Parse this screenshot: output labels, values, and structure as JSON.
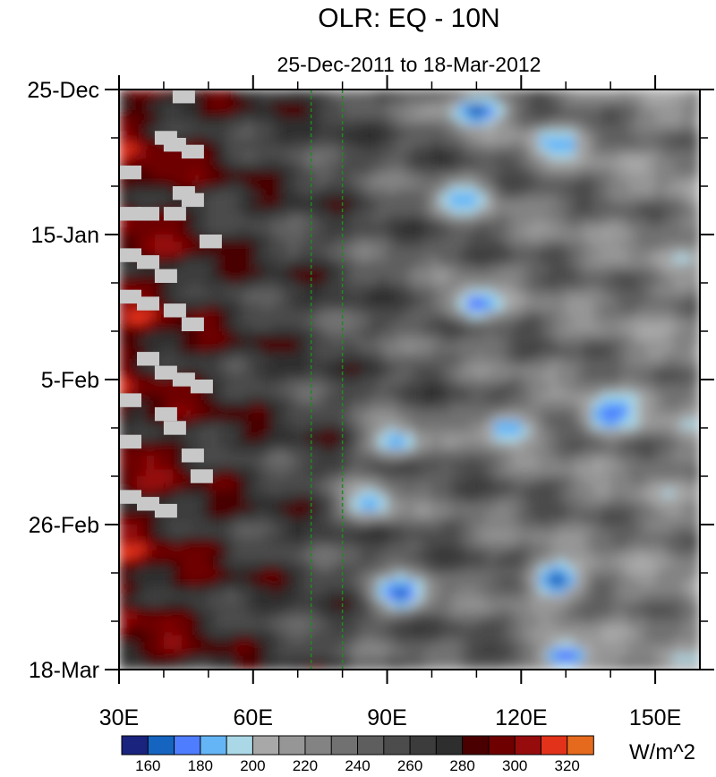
{
  "chart_data": {
    "type": "heatmap",
    "title": "OLR: EQ - 10N",
    "subtitle": "25-Dec-2011 to 18-Mar-2012",
    "xlabel": "",
    "ylabel": "",
    "x_ticks": [
      "30E",
      "60E",
      "90E",
      "120E",
      "150E"
    ],
    "x_tick_values": [
      30,
      60,
      90,
      120,
      150
    ],
    "xlim": [
      30,
      160
    ],
    "y_ticks": [
      "25-Dec",
      "15-Jan",
      "5-Feb",
      "26-Feb",
      "18-Mar"
    ],
    "y_tick_values": [
      "2011-12-25",
      "2012-01-15",
      "2012-02-05",
      "2012-02-26",
      "2012-03-18"
    ],
    "ylim": [
      "2011-12-25",
      "2012-03-18"
    ],
    "reference_lines_x": [
      73,
      80
    ],
    "colorbar": {
      "unit": "W/m^2",
      "labels": [
        "160",
        "180",
        "200",
        "220",
        "240",
        "260",
        "280",
        "300",
        "320"
      ],
      "levels": [
        160,
        170,
        180,
        190,
        200,
        210,
        220,
        230,
        240,
        250,
        260,
        270,
        280,
        290,
        300,
        310,
        320
      ],
      "colors": [
        "#1a237e",
        "#1565c0",
        "#4f7dff",
        "#64b5f6",
        "#aad8e6",
        "#a8a8a8",
        "#969696",
        "#838383",
        "#717171",
        "#5e5e5e",
        "#4c4c4c",
        "#3c3c3c",
        "#2e2e2e",
        "#4a0000",
        "#6e0000",
        "#960c0c",
        "#e2321a",
        "#e56a1d"
      ]
    },
    "grid": false,
    "legend": "colorbar-bottom",
    "field_description_features": [
      {
        "lon": 40,
        "date": "2012-01-05",
        "value": 295
      },
      {
        "lon": 110,
        "date": "2011-12-28",
        "value": 165
      },
      {
        "lon": 128,
        "date": "2012-01-02",
        "value": 180
      },
      {
        "lon": 107,
        "date": "2012-01-10",
        "value": 180
      },
      {
        "lon": 110,
        "date": "2012-01-25",
        "value": 175
      },
      {
        "lon": 140,
        "date": "2012-02-10",
        "value": 170
      },
      {
        "lon": 117,
        "date": "2012-02-12",
        "value": 180
      },
      {
        "lon": 92,
        "date": "2012-02-14",
        "value": 180
      },
      {
        "lon": 86,
        "date": "2012-02-23",
        "value": 180
      },
      {
        "lon": 93,
        "date": "2012-03-07",
        "value": 165
      },
      {
        "lon": 128,
        "date": "2012-03-05",
        "value": 165
      },
      {
        "lon": 130,
        "date": "2012-03-16",
        "value": 170
      }
    ]
  }
}
